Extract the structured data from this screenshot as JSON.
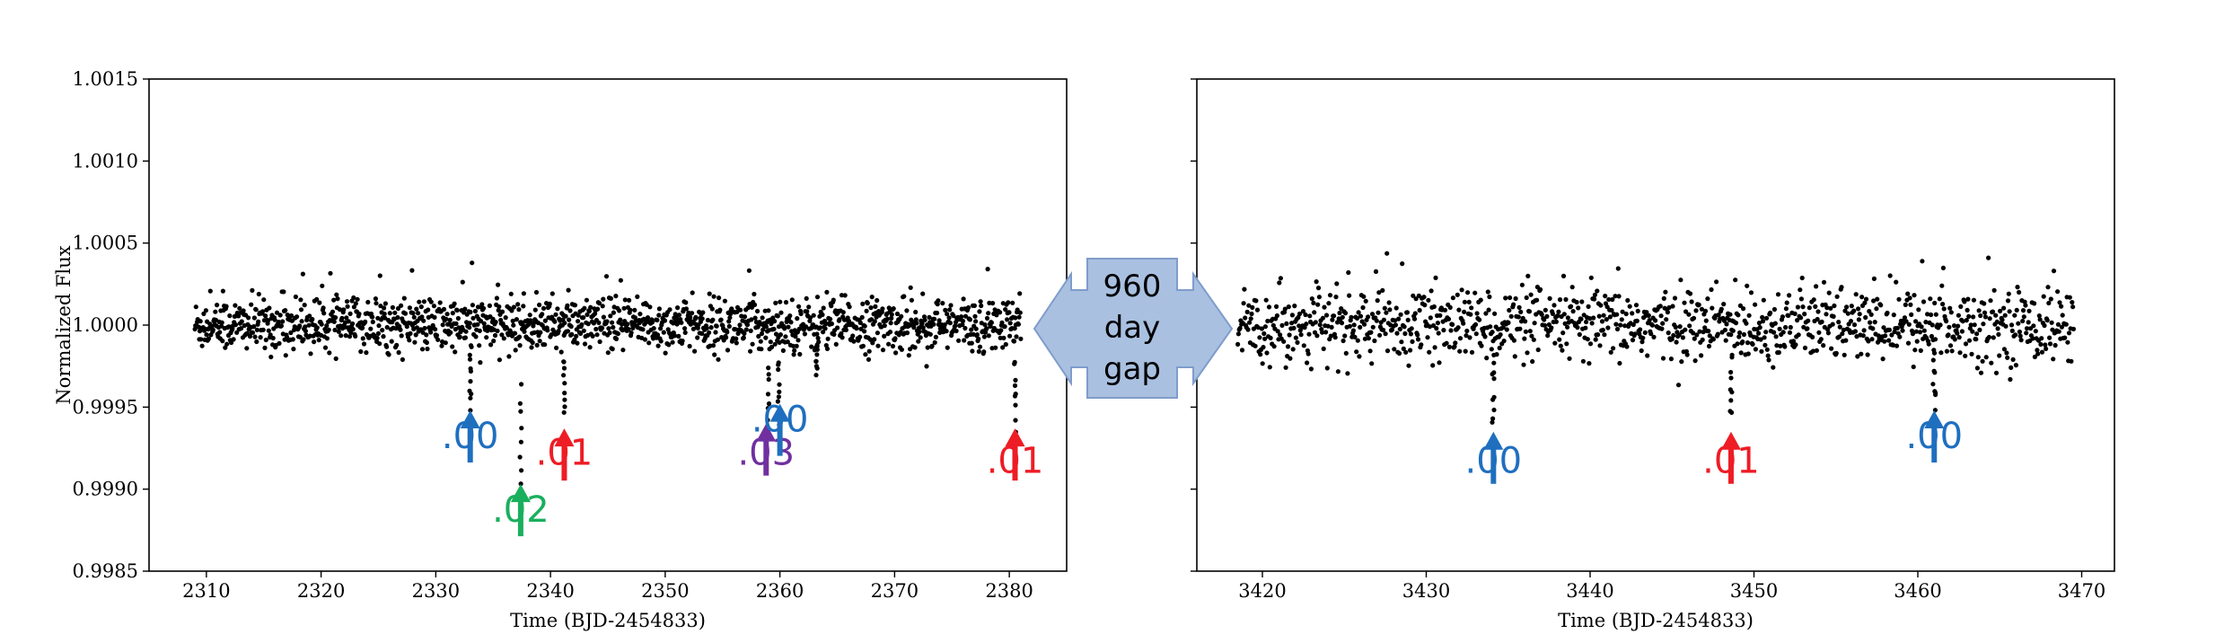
{
  "chart_data": [
    {
      "type": "scatter",
      "title": "",
      "xlabel": "Time (BJD-2454833)",
      "ylabel": "Normalized Flux",
      "xlim": [
        2305,
        2385
      ],
      "ylim": [
        0.9985,
        1.0015
      ],
      "xticks": [
        2310,
        2320,
        2330,
        2340,
        2350,
        2360,
        2370,
        2380
      ],
      "yticks": [
        "0.9985",
        "0.9990",
        "0.9995",
        "1.0000",
        "1.0005",
        "1.0010",
        "1.0015"
      ],
      "grid": false,
      "series": [
        {
          "baseline_flux": 1.0,
          "scatter_rms": 8e-05,
          "time_range": [
            2309,
            2381
          ],
          "transits": [
            {
              "t": 2333.0,
              "depth": 0.0005
            },
            {
              "t": 2337.4,
              "depth": 0.00105
            },
            {
              "t": 2341.2,
              "depth": 0.00055
            },
            {
              "t": 2359.0,
              "depth": 0.0007
            },
            {
              "t": 2359.9,
              "depth": 0.0006
            },
            {
              "t": 2363.2,
              "depth": 0.0003
            },
            {
              "t": 2380.5,
              "depth": 0.0006
            }
          ]
        }
      ],
      "annotations": [
        {
          "label": ".00",
          "x": 2333.0,
          "color": "#1f6fbf",
          "tip_flux": 0.99948,
          "text_flux": 0.99925
        },
        {
          "label": ".02",
          "x": 2337.4,
          "color": "#1aaf5d",
          "tip_flux": 0.99903,
          "text_flux": 0.9988
        },
        {
          "label": ".01",
          "x": 2341.2,
          "color": "#ee1c25",
          "tip_flux": 0.99937,
          "text_flux": 0.99915
        },
        {
          "label": ".03",
          "x": 2358.8,
          "color": "#7030a0",
          "tip_flux": 0.9994,
          "text_flux": 0.99915
        },
        {
          "label": ".00",
          "x": 2360.0,
          "color": "#1f6fbf",
          "tip_flux": 0.99952,
          "text_flux": 0.99935
        },
        {
          "label": ".01",
          "x": 2380.5,
          "color": "#ee1c25",
          "tip_flux": 0.99937,
          "text_flux": 0.9991
        }
      ]
    },
    {
      "type": "scatter",
      "title": "",
      "xlabel": "Time (BJD-2454833)",
      "ylabel": "",
      "xlim": [
        3416,
        3472
      ],
      "ylim": [
        0.9985,
        1.0015
      ],
      "xticks": [
        3420,
        3430,
        3440,
        3450,
        3460,
        3470
      ],
      "yticks": [],
      "grid": false,
      "series": [
        {
          "baseline_flux": 1.0,
          "scatter_rms": 0.00011,
          "time_range": [
            3418.5,
            3469.5
          ],
          "transits": [
            {
              "t": 3434.1,
              "depth": 0.0006
            },
            {
              "t": 3448.6,
              "depth": 0.00055
            },
            {
              "t": 3461.0,
              "depth": 0.0005
            }
          ]
        }
      ],
      "annotations": [
        {
          "label": ".00",
          "x": 3434.1,
          "color": "#1f6fbf",
          "tip_flux": 0.99935,
          "text_flux": 0.9991
        },
        {
          "label": ".01",
          "x": 3448.6,
          "color": "#ee1c25",
          "tip_flux": 0.99935,
          "text_flux": 0.9991
        },
        {
          "label": ".00",
          "x": 3461.0,
          "color": "#1f6fbf",
          "tip_flux": 0.99948,
          "text_flux": 0.99925
        }
      ]
    }
  ],
  "gap_callout": {
    "line1": "960",
    "line2": "day",
    "line3": "gap",
    "fill": "#a9c0e0",
    "stroke": "#7f9ccc"
  }
}
